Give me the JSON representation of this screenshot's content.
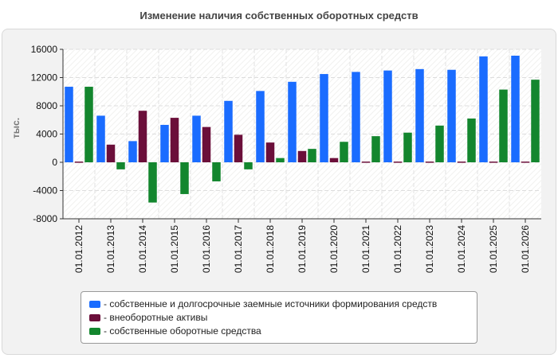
{
  "chart_data": {
    "type": "bar",
    "title": "Изменение наличия собственных оборотных средств",
    "ylabel": "тыс.",
    "ylim": [
      -8000,
      16000
    ],
    "yticks": [
      -8000,
      -4000,
      0,
      4000,
      8000,
      12000,
      16000
    ],
    "grid": true,
    "legend_position": "bottom",
    "categories": [
      "01.01.2012",
      "01.01.2013",
      "01.01.2014",
      "01.01.2015",
      "01.01.2016",
      "01.01.2017",
      "01.01.2018",
      "01.01.2019",
      "01.01.2020",
      "01.01.2021",
      "01.01.2022",
      "01.01.2023",
      "01.01.2024",
      "01.01.2025",
      "01.01.2026"
    ],
    "series": [
      {
        "name": "- собственные и долгосрочные заемные источники формирования средств",
        "color": "#1a6cff",
        "values": [
          10700,
          6600,
          3000,
          5300,
          6600,
          8700,
          10100,
          11400,
          12500,
          12800,
          13000,
          13200,
          13100,
          15000,
          15100
        ]
      },
      {
        "name": "- внеоборотные активы",
        "color": "#6b0f3a",
        "values": [
          100,
          2500,
          7300,
          6300,
          5000,
          3900,
          2800,
          1600,
          600,
          100,
          100,
          100,
          100,
          100,
          100
        ]
      },
      {
        "name": "- собственные оборотные средства",
        "color": "#13862e",
        "values": [
          10700,
          -1000,
          -5700,
          -4500,
          -2700,
          -1000,
          600,
          1900,
          2900,
          3700,
          4200,
          5200,
          6200,
          10300,
          11700
        ]
      }
    ]
  }
}
